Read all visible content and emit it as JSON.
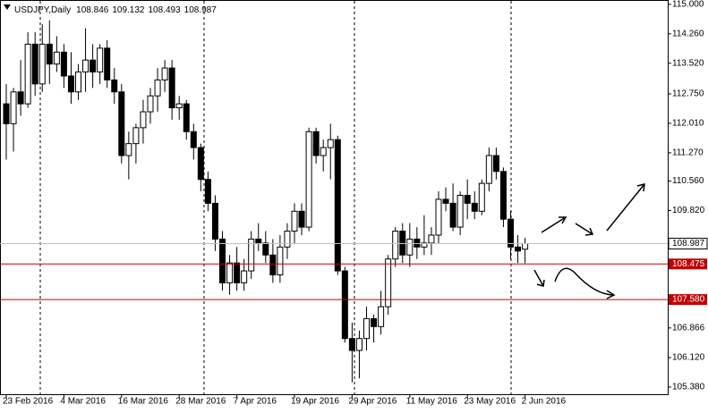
{
  "chart_data": {
    "type": "candlestick",
    "symbol": "USDJPY,Daily",
    "categories": [
      "23 Feb 2016",
      null,
      null,
      null,
      null,
      null,
      null,
      null,
      "4 Mar 2016",
      null,
      null,
      null,
      null,
      null,
      null,
      null,
      "16 Mar 2016",
      null,
      null,
      null,
      null,
      null,
      null,
      null,
      "28 Mar 2016",
      null,
      null,
      null,
      null,
      null,
      null,
      null,
      "7 Apr 2016",
      null,
      null,
      null,
      null,
      null,
      null,
      null,
      "19 Apr 2016",
      null,
      null,
      null,
      null,
      null,
      null,
      null,
      "29 Apr 2016",
      null,
      null,
      null,
      null,
      null,
      null,
      null,
      "11 May 2016",
      null,
      null,
      null,
      null,
      null,
      null,
      null,
      "23 May 2016",
      null,
      null,
      null,
      null,
      null,
      null,
      null,
      "2 Jun 2016"
    ],
    "open": [
      112.5,
      112.0,
      112.8,
      112.5,
      114.0,
      113.0,
      114.0,
      113.5,
      113.8,
      113.2,
      112.8,
      113.3,
      113.6,
      113.3,
      113.9,
      113.1,
      112.8,
      111.2,
      111.5,
      111.9,
      112.3,
      112.7,
      113.1,
      113.4,
      112.4,
      112.5,
      111.8,
      111.4,
      110.6,
      110.0,
      109.1,
      108.0,
      108.5,
      108.0,
      108.3,
      109.1,
      109.0,
      108.7,
      108.2,
      108.9,
      109.3,
      109.8,
      109.4,
      111.8,
      111.2,
      111.4,
      111.6,
      108.3,
      106.6,
      106.3,
      106.6,
      107.1,
      106.9,
      107.4,
      108.6,
      109.3,
      108.7,
      109.1,
      108.9,
      109.0,
      109.2,
      110.1,
      110.0,
      109.4,
      110.2,
      110.0,
      109.8,
      110.5,
      111.2,
      110.8,
      109.6,
      108.9,
      108.846
    ],
    "high": [
      113.0,
      112.9,
      113.6,
      114.3,
      114.3,
      114.5,
      114.6,
      114.2,
      114.0,
      113.8,
      113.5,
      114.4,
      114.0,
      114.0,
      114.1,
      113.4,
      113.0,
      111.8,
      112.0,
      112.6,
      112.9,
      113.4,
      113.6,
      113.6,
      112.7,
      112.6,
      112.0,
      111.5,
      110.8,
      110.2,
      109.3,
      108.7,
      108.9,
      108.6,
      109.3,
      109.5,
      109.3,
      109.1,
      109.2,
      109.5,
      110.0,
      110.0,
      111.9,
      111.9,
      111.6,
      112.0,
      111.7,
      108.4,
      107.0,
      106.8,
      107.4,
      107.2,
      107.8,
      108.7,
      109.4,
      109.5,
      109.5,
      109.4,
      109.7,
      109.4,
      110.3,
      110.4,
      110.5,
      110.3,
      110.6,
      110.3,
      110.6,
      111.4,
      111.4,
      110.9,
      109.8,
      109.2,
      109.132
    ],
    "low": [
      111.1,
      111.3,
      112.2,
      112.4,
      112.7,
      112.8,
      113.0,
      113.3,
      112.9,
      112.5,
      112.6,
      112.8,
      112.9,
      113.0,
      112.9,
      112.5,
      111.0,
      110.6,
      111.0,
      111.5,
      112.0,
      112.3,
      112.8,
      112.1,
      112.1,
      111.6,
      111.1,
      110.3,
      109.8,
      108.8,
      107.8,
      107.7,
      107.8,
      107.8,
      108.1,
      108.8,
      108.5,
      108.0,
      108.0,
      108.6,
      109.0,
      109.2,
      109.3,
      111.0,
      110.8,
      110.6,
      108.2,
      106.5,
      105.5,
      105.6,
      106.3,
      106.5,
      106.7,
      107.2,
      108.4,
      108.5,
      108.4,
      108.6,
      108.7,
      108.7,
      109.0,
      109.8,
      109.3,
      109.2,
      109.6,
      109.6,
      109.7,
      110.3,
      110.6,
      109.4,
      108.6,
      108.5,
      108.493
    ],
    "close": [
      112.0,
      112.8,
      112.5,
      114.0,
      113.0,
      114.0,
      113.5,
      113.8,
      113.2,
      112.8,
      113.3,
      113.6,
      113.3,
      113.9,
      113.1,
      112.8,
      111.2,
      111.5,
      111.9,
      112.3,
      112.7,
      113.1,
      113.4,
      112.4,
      112.5,
      111.8,
      111.4,
      110.6,
      110.0,
      109.1,
      108.0,
      108.5,
      108.0,
      108.3,
      109.1,
      109.0,
      108.7,
      108.2,
      108.9,
      109.3,
      109.8,
      109.4,
      111.8,
      111.2,
      111.4,
      111.6,
      108.3,
      106.6,
      106.3,
      106.6,
      107.1,
      106.9,
      107.4,
      108.6,
      109.3,
      108.7,
      109.1,
      108.9,
      109.0,
      109.2,
      110.1,
      110.0,
      109.4,
      110.2,
      110.0,
      109.8,
      110.5,
      111.2,
      110.8,
      109.6,
      108.9,
      108.8,
      108.987
    ],
    "ylim": [
      105.2,
      115.11
    ],
    "yticks": [
      {
        "value": 115.0,
        "label": "115.000"
      },
      {
        "value": 114.26,
        "label": "114.260"
      },
      {
        "value": 113.52,
        "label": "113.520"
      },
      {
        "value": 112.75,
        "label": "112.750"
      },
      {
        "value": 112.01,
        "label": "112.010"
      },
      {
        "value": 111.27,
        "label": "111.270"
      },
      {
        "value": 110.56,
        "label": "110.560"
      },
      {
        "value": 109.82,
        "label": "109.820"
      },
      106.866,
      {
        "value": 106.12,
        "label": "106.120"
      },
      {
        "value": 105.38,
        "label": "105.380"
      }
    ],
    "levels": [
      108.475,
      {
        "value": 107.58,
        "label": "107.580"
      }
    ],
    "level_color": "#c00000"
  }
}
